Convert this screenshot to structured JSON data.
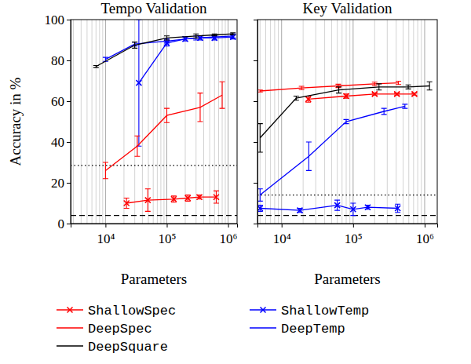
{
  "chart_data": [
    {
      "type": "line",
      "title": "Tempo Validation",
      "x_label": "Parameters",
      "y_label": "Accuracy in %",
      "log": "x",
      "grid": "x",
      "legend": "bottom",
      "xlim": [
        2700,
        1400000
      ],
      "xticks": [
        {
          "value": 10000,
          "label": "10⁴"
        },
        {
          "value": 100000,
          "label": "10⁵"
        },
        {
          "value": 1000000,
          "label": "10⁶"
        }
      ],
      "ylim": [
        0,
        100
      ],
      "yticks": [
        0,
        20,
        40,
        60,
        80,
        100
      ],
      "baselines": [
        {
          "value": 28.5,
          "line_style": "dotted"
        },
        {
          "value": 4,
          "line_style": "dashed"
        }
      ],
      "series": [
        {
          "name": "ShallowSpec",
          "color": "red",
          "marker": "x",
          "x": [
            22000,
            49000,
            130000,
            220000,
            340000,
            640000
          ],
          "values": [
            10,
            11.5,
            12,
            12.5,
            13,
            13
          ],
          "errors": [
            2.5,
            5.5,
            1.5,
            1.5,
            1,
            3
          ]
        },
        {
          "name": "ShallowTemp",
          "color": "blue",
          "marker": "x",
          "x": [
            35000,
            100000,
            200000,
            350000,
            600000,
            1200000
          ],
          "values": [
            69,
            88.5,
            90.5,
            91,
            91,
            91.5
          ],
          "errors": [
            31,
            1.5,
            1,
            1,
            1,
            1
          ]
        },
        {
          "name": "DeepSpec",
          "color": "red",
          "marker": "none",
          "x": [
            10000,
            33000,
            100000,
            350000,
            800000
          ],
          "values": [
            26,
            38,
            53,
            57,
            63
          ],
          "errors": [
            4,
            5,
            3.5,
            7,
            6.5
          ]
        },
        {
          "name": "DeepTemp",
          "color": "blue",
          "marker": "none",
          "x": [
            10000,
            30000,
            100000,
            300000,
            1200000
          ],
          "values": [
            80.5,
            88,
            89.5,
            91,
            92
          ],
          "errors": [
            1,
            1,
            1,
            1,
            1
          ]
        },
        {
          "name": "DeepSquare",
          "color": "black",
          "marker": "none",
          "x": [
            7000,
            30000,
            100000,
            300000,
            600000,
            1200000
          ],
          "values": [
            77,
            87.5,
            91,
            92,
            92.5,
            93
          ],
          "errors": [
            0.5,
            1.5,
            1,
            1,
            0.5,
            0.5
          ]
        }
      ]
    },
    {
      "type": "line",
      "title": "Key Validation",
      "x_label": "Parameters",
      "log": "x",
      "grid": "x",
      "tick_labels": "x",
      "xlim": [
        4600,
        1500000
      ],
      "xticks": [
        {
          "value": 10000,
          "label": "10⁴"
        },
        {
          "value": 100000,
          "label": "10⁵"
        },
        {
          "value": 1000000,
          "label": "10⁶"
        }
      ],
      "ylim": [
        0,
        100
      ],
      "yticks": [
        0,
        20,
        40,
        60,
        80,
        100
      ],
      "baselines": [
        {
          "value": 14,
          "line_style": "dotted"
        },
        {
          "value": 4,
          "line_style": "dashed"
        }
      ],
      "series": [
        {
          "name": "ShallowSpec",
          "color": "red",
          "marker": "x",
          "x": [
            23600,
            80000,
            200000,
            410000,
            720000
          ],
          "values": [
            61,
            62.5,
            63.5,
            63.5,
            63.5
          ],
          "errors": [
            1.5,
            1,
            0.5,
            0.5,
            0.5
          ]
        },
        {
          "name": "ShallowTemp",
          "color": "blue",
          "marker": "x",
          "x": [
            5000,
            18000,
            60000,
            100000,
            160000,
            420000
          ],
          "values": [
            7.5,
            6.5,
            9,
            7,
            8,
            7.5
          ],
          "errors": [
            1.5,
            1,
            2.5,
            3,
            1,
            2
          ]
        },
        {
          "name": "DeepSpec",
          "color": "red",
          "marker": "none",
          "x": [
            5000,
            19000,
            62000,
            200000,
            430000
          ],
          "values": [
            65,
            66.5,
            67.5,
            68.5,
            69
          ],
          "errors": [
            0.5,
            0.8,
            0.8,
            0.8,
            0.8
          ]
        },
        {
          "name": "DeepTemp",
          "color": "blue",
          "marker": "none",
          "x": [
            5000,
            24000,
            80000,
            270000,
            530000
          ],
          "values": [
            14,
            33,
            50,
            55,
            57.5
          ],
          "errors": [
            3,
            7,
            1,
            1.5,
            1
          ]
        },
        {
          "name": "DeepSquare",
          "color": "black",
          "marker": "none",
          "x": [
            5000,
            16000,
            63000,
            230000,
            590000,
            1170000
          ],
          "values": [
            42,
            61.5,
            65.5,
            67,
            67,
            67.5
          ],
          "errors": [
            7,
            1,
            1.5,
            1.5,
            1,
            2
          ]
        }
      ]
    }
  ]
}
